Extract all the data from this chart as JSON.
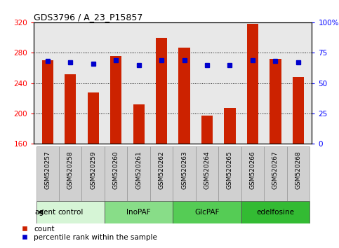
{
  "title": "GDS3796 / A_23_P15857",
  "samples": [
    "GSM520257",
    "GSM520258",
    "GSM520259",
    "GSM520260",
    "GSM520261",
    "GSM520262",
    "GSM520263",
    "GSM520264",
    "GSM520265",
    "GSM520266",
    "GSM520267",
    "GSM520268"
  ],
  "count_values": [
    270,
    252,
    228,
    276,
    212,
    300,
    287,
    197,
    207,
    318,
    272,
    248
  ],
  "percentile_values": [
    68,
    67,
    66,
    69,
    65,
    69,
    69,
    65,
    65,
    69,
    68,
    67
  ],
  "ylim_left": [
    160,
    320
  ],
  "ylim_right": [
    0,
    100
  ],
  "yticks_left": [
    160,
    200,
    240,
    280,
    320
  ],
  "yticks_right": [
    0,
    25,
    50,
    75,
    100
  ],
  "ytick_right_labels": [
    "0",
    "25",
    "50",
    "75",
    "100%"
  ],
  "bar_color": "#cc2200",
  "dot_color": "#0000cc",
  "bar_bottom": 160,
  "groups": [
    {
      "label": "control",
      "start": 0,
      "end": 3,
      "color": "#d6f5d6"
    },
    {
      "label": "InoPAF",
      "start": 3,
      "end": 6,
      "color": "#88dd88"
    },
    {
      "label": "GlcPAF",
      "start": 6,
      "end": 9,
      "color": "#55cc55"
    },
    {
      "label": "edelfosine",
      "start": 9,
      "end": 12,
      "color": "#33bb33"
    }
  ],
  "sample_box_color": "#d0d0d0",
  "plot_bg_color": "#e8e8e8",
  "legend_count_color": "#cc2200",
  "legend_dot_color": "#0000cc",
  "agent_label": "agent"
}
